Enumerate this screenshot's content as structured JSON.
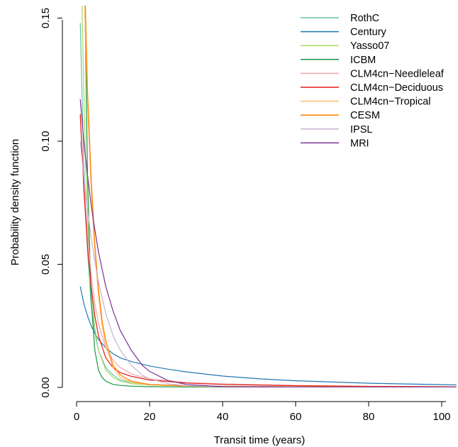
{
  "chart_data": {
    "type": "line",
    "title": "",
    "xlabel": "Transit time (years)",
    "ylabel": "Probability density function",
    "xlim": [
      0,
      104
    ],
    "ylim": [
      0,
      0.155
    ],
    "xticks": [
      0,
      20,
      40,
      60,
      80,
      100
    ],
    "yticks": [
      0.0,
      0.05,
      0.1,
      0.15
    ],
    "xtick_labels": [
      "0",
      "20",
      "40",
      "60",
      "80",
      "100"
    ],
    "ytick_labels": [
      "0.00",
      "0.05",
      "0.10",
      "0.15"
    ],
    "grid": false,
    "legend_position": "top-right",
    "series": [
      {
        "name": "RothC",
        "color": "#66c2a5",
        "x": [
          1,
          2,
          3,
          4,
          5,
          6,
          8,
          10,
          12,
          15,
          20,
          30,
          40,
          60,
          80,
          104
        ],
        "y": [
          0.148,
          0.09,
          0.055,
          0.034,
          0.022,
          0.015,
          0.008,
          0.005,
          0.003,
          0.002,
          0.0012,
          0.0007,
          0.0005,
          0.0003,
          0.0002,
          0.0001
        ]
      },
      {
        "name": "Century",
        "color": "#1f78b4",
        "x": [
          1,
          2,
          3,
          4,
          5,
          6,
          8,
          10,
          12,
          15,
          20,
          25,
          30,
          40,
          50,
          60,
          80,
          104
        ],
        "y": [
          0.041,
          0.034,
          0.029,
          0.025,
          0.022,
          0.0195,
          0.016,
          0.0137,
          0.012,
          0.0105,
          0.0087,
          0.0074,
          0.0063,
          0.0046,
          0.0035,
          0.0027,
          0.0017,
          0.001
        ]
      },
      {
        "name": "Yasso07",
        "color": "#a6d96a",
        "x": [
          1.5,
          2,
          2.5,
          3,
          4,
          5,
          6,
          8,
          10,
          12,
          15,
          20,
          30,
          40,
          60,
          104
        ],
        "y": [
          0.155,
          0.12,
          0.09,
          0.068,
          0.04,
          0.024,
          0.015,
          0.007,
          0.004,
          0.0025,
          0.0015,
          0.001,
          0.0006,
          0.0004,
          0.0002,
          0.0001
        ]
      },
      {
        "name": "ICBM",
        "color": "#1a9641",
        "x": [
          2.3,
          3,
          4,
          5,
          6,
          7,
          8,
          10,
          12,
          15,
          20,
          40,
          60,
          104
        ],
        "y": [
          0.155,
          0.085,
          0.035,
          0.015,
          0.007,
          0.004,
          0.0025,
          0.0012,
          0.0008,
          0.0005,
          0.0003,
          0.0001,
          0.0001,
          0.0001
        ]
      },
      {
        "name": "CLM4cn−Needleleaf",
        "color": "#f4a6a6",
        "x": [
          1,
          2,
          3,
          4,
          5,
          6,
          8,
          10,
          12,
          15,
          20,
          30,
          40,
          60,
          80,
          104
        ],
        "y": [
          0.11,
          0.083,
          0.062,
          0.046,
          0.034,
          0.026,
          0.016,
          0.011,
          0.008,
          0.0055,
          0.0035,
          0.002,
          0.0014,
          0.0008,
          0.0005,
          0.0003
        ]
      },
      {
        "name": "CLM4cn−Deciduous",
        "color": "#e31a1c",
        "x": [
          1,
          2,
          3,
          4,
          5,
          6,
          8,
          10,
          12,
          15,
          20,
          30,
          40,
          60,
          80,
          104
        ],
        "y": [
          0.111,
          0.08,
          0.057,
          0.041,
          0.029,
          0.021,
          0.012,
          0.008,
          0.006,
          0.0045,
          0.003,
          0.0018,
          0.0012,
          0.0007,
          0.0004,
          0.0002
        ]
      },
      {
        "name": "CLM4cn−Tropical",
        "color": "#fdbf6f",
        "x": [
          2.2,
          3,
          4,
          5,
          6,
          7,
          8,
          10,
          12,
          15,
          20,
          30,
          40,
          60,
          104
        ],
        "y": [
          0.155,
          0.115,
          0.08,
          0.055,
          0.037,
          0.025,
          0.017,
          0.008,
          0.004,
          0.002,
          0.001,
          0.0005,
          0.0003,
          0.0002,
          0.0001
        ]
      },
      {
        "name": "CESM",
        "color": "#ff7f00",
        "x": [
          2.4,
          3,
          4,
          5,
          6,
          7,
          8,
          10,
          12,
          15,
          20,
          30,
          40,
          60,
          104
        ],
        "y": [
          0.155,
          0.12,
          0.085,
          0.058,
          0.04,
          0.027,
          0.019,
          0.009,
          0.005,
          0.0025,
          0.0012,
          0.0006,
          0.0004,
          0.0002,
          0.0001
        ]
      },
      {
        "name": "IPSL",
        "color": "#cab2d6",
        "x": [
          1,
          2,
          3,
          4,
          5,
          6,
          8,
          10,
          12,
          15,
          18,
          20,
          25,
          30,
          40,
          60,
          104
        ],
        "y": [
          0.1,
          0.085,
          0.072,
          0.061,
          0.051,
          0.043,
          0.03,
          0.021,
          0.015,
          0.009,
          0.005,
          0.0035,
          0.0015,
          0.0007,
          0.0003,
          0.0001,
          0.0001
        ]
      },
      {
        "name": "MRI",
        "color": "#7b3294",
        "x": [
          1,
          2,
          3,
          4,
          5,
          6,
          8,
          10,
          12,
          15,
          18,
          20,
          25,
          30,
          40,
          60,
          104
        ],
        "y": [
          0.117,
          0.1,
          0.086,
          0.074,
          0.064,
          0.055,
          0.041,
          0.031,
          0.023,
          0.015,
          0.009,
          0.0065,
          0.0028,
          0.0012,
          0.0003,
          0.0001,
          0.0001
        ]
      }
    ]
  }
}
